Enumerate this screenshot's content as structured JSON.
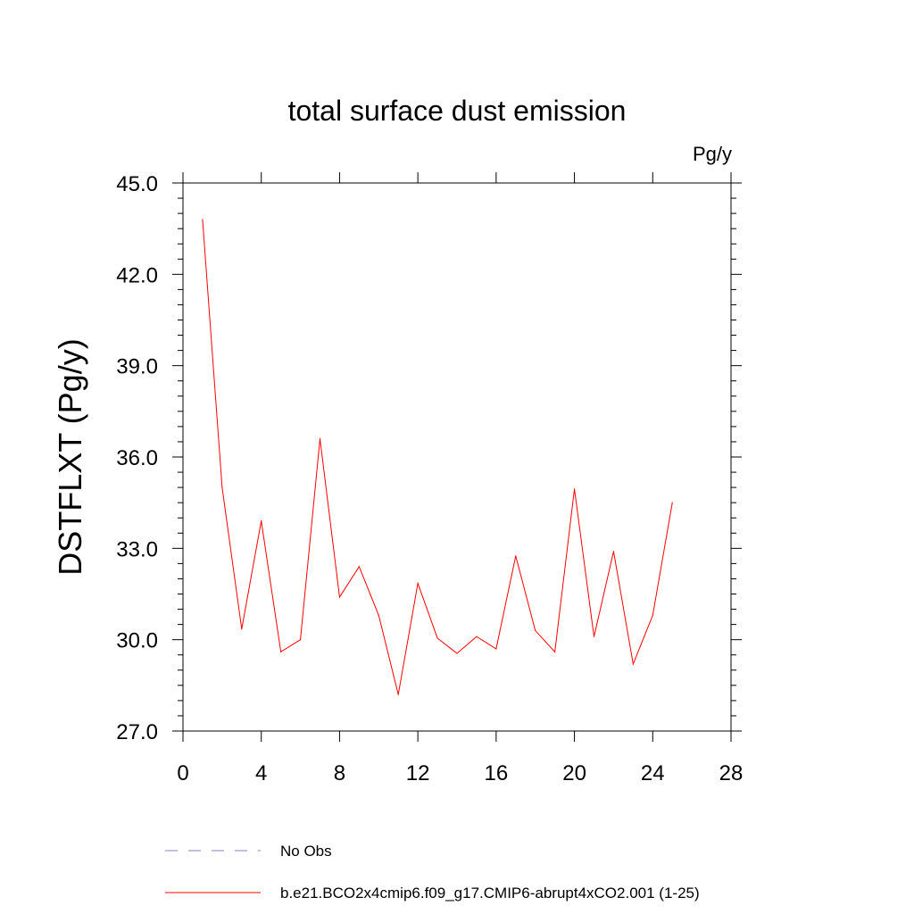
{
  "chart_data": {
    "type": "line",
    "title": "total surface dust emission",
    "units_label": "Pg/y",
    "ylabel": "DSTFLXT  (Pg/y)",
    "xlabel": "",
    "xlim": [
      0,
      28
    ],
    "ylim": [
      27.0,
      45.0
    ],
    "x_ticks": [
      0,
      4,
      8,
      12,
      16,
      20,
      24,
      28
    ],
    "x_tick_labels": [
      "0",
      "4",
      "8",
      "12",
      "16",
      "20",
      "24",
      "28"
    ],
    "y_ticks": [
      27.0,
      30.0,
      33.0,
      36.0,
      39.0,
      42.0,
      45.0
    ],
    "y_tick_labels": [
      "27.0",
      "30.0",
      "33.0",
      "36.0",
      "39.0",
      "42.0",
      "45.0"
    ],
    "grid": false,
    "legend_placement": "bottom",
    "series": [
      {
        "name": "b.e21.BCO2x4cmip6.f09_g17.CMIP6-abrupt4xCO2.001 (1-25)",
        "color": "#ff0000",
        "style": "solid",
        "x": [
          1,
          2,
          3,
          4,
          5,
          6,
          7,
          8,
          9,
          10,
          11,
          12,
          13,
          14,
          15,
          16,
          17,
          18,
          19,
          20,
          21,
          22,
          23,
          24,
          25
        ],
        "y": [
          43.8,
          35.0,
          30.35,
          33.9,
          29.6,
          30.0,
          36.6,
          31.4,
          32.4,
          30.8,
          28.2,
          31.85,
          30.05,
          29.55,
          30.1,
          29.7,
          32.75,
          30.3,
          29.6,
          34.95,
          30.1,
          32.9,
          29.2,
          30.8,
          34.5
        ]
      }
    ],
    "legend": [
      {
        "label": "No Obs",
        "color": "#8a7fc0",
        "style": "dashed"
      },
      {
        "label": "b.e21.BCO2x4cmip6.f09_g17.CMIP6-abrupt4xCO2.001 (1-25)",
        "color": "#ff0000",
        "style": "solid"
      }
    ]
  }
}
